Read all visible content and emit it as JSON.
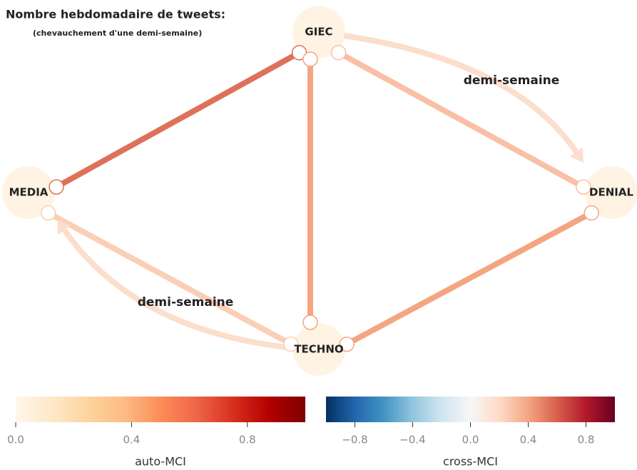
{
  "title": "Nombre hebdomadaire de tweets:",
  "subtitle": "(chevauchement d'une demi-semaine)",
  "nodes": [
    {
      "label": "GIEC",
      "auto_mci": 0.05
    },
    {
      "label": "MEDIA",
      "auto_mci": 0.05
    },
    {
      "label": "DENIAL",
      "auto_mci": 0.05
    },
    {
      "label": "TECHNO",
      "auto_mci": 0.05
    }
  ],
  "links": [
    {
      "from": "MEDIA",
      "to": "GIEC",
      "cross_mci": 0.55
    },
    {
      "from": "GIEC",
      "to": "DENIAL",
      "cross_mci": 0.3
    },
    {
      "from": "GIEC",
      "to": "TECHNO",
      "cross_mci": 0.4
    },
    {
      "from": "TECHNO",
      "to": "DENIAL",
      "cross_mci": 0.4
    },
    {
      "from": "MEDIA",
      "to": "TECHNO",
      "cross_mci": 0.25
    }
  ],
  "lagged_links": [
    {
      "from": "GIEC",
      "to": "DENIAL",
      "cross_mci": 0.18,
      "label": "demi-semaine"
    },
    {
      "from": "TECHNO",
      "to": "MEDIA",
      "cross_mci": 0.18,
      "label": "demi-semaine"
    }
  ],
  "colorbars": [
    {
      "label": "auto-MCI",
      "lim": [
        0,
        1
      ],
      "ticks": [
        {
          "value": 0,
          "label": "0.0"
        },
        0.4,
        0.8
      ]
    },
    {
      "label": "cross-MCI",
      "lim": [
        -1,
        1
      ],
      "ticks": [
        {
          "value": -0.8,
          "label": "−0.8"
        },
        {
          "value": -0.4,
          "label": "−0.4"
        },
        {
          "value": 0,
          "label": "0.0"
        },
        0.4,
        0.8
      ]
    }
  ]
}
